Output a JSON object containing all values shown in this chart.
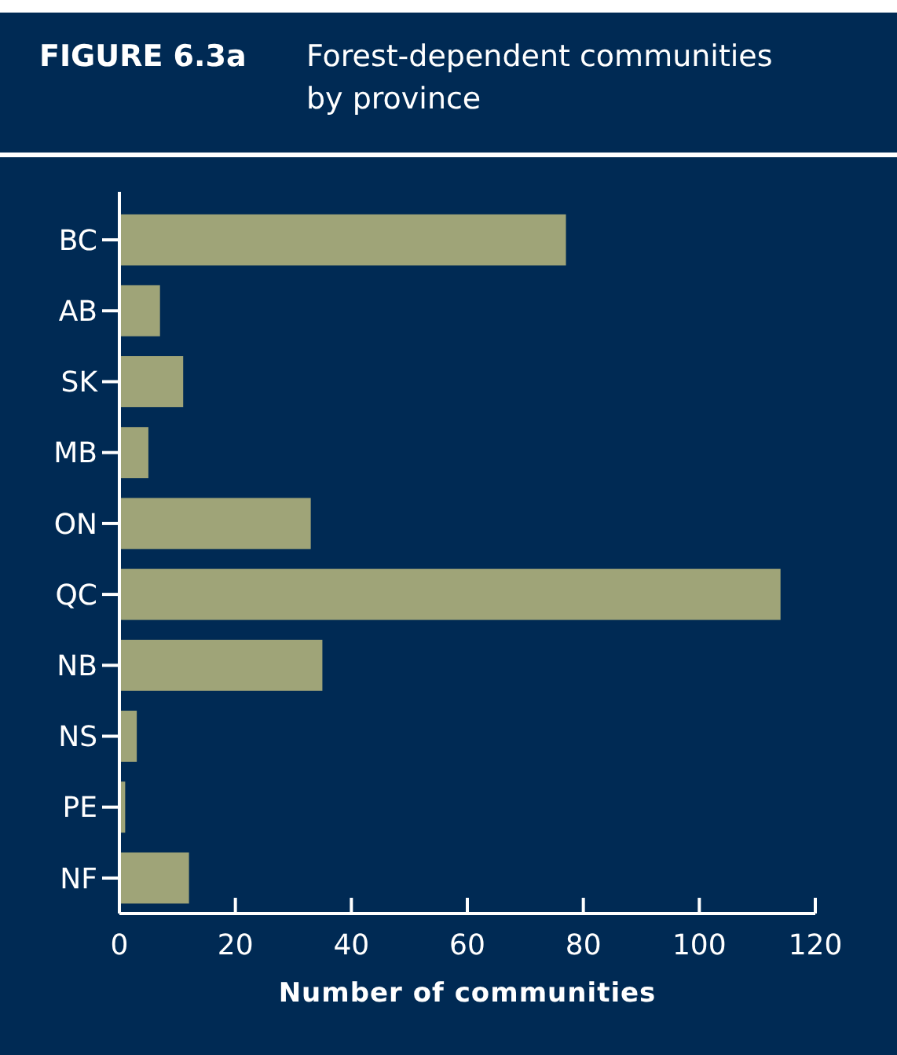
{
  "chart_data": {
    "type": "bar",
    "orientation": "horizontal",
    "title": "FIGURE 6.3a",
    "subtitle": "Forest-dependent communities by province",
    "xlabel": "Number of communities",
    "categories": [
      "BC",
      "AB",
      "SK",
      "MB",
      "ON",
      "QC",
      "NB",
      "NS",
      "PE",
      "NF"
    ],
    "values": [
      77,
      7,
      11,
      5,
      33,
      114,
      35,
      3,
      1,
      12
    ],
    "color": "#9fa478",
    "xlim": [
      0,
      120
    ],
    "xticks": [
      0,
      20,
      40,
      60,
      80,
      100,
      120
    ],
    "grid": false
  }
}
